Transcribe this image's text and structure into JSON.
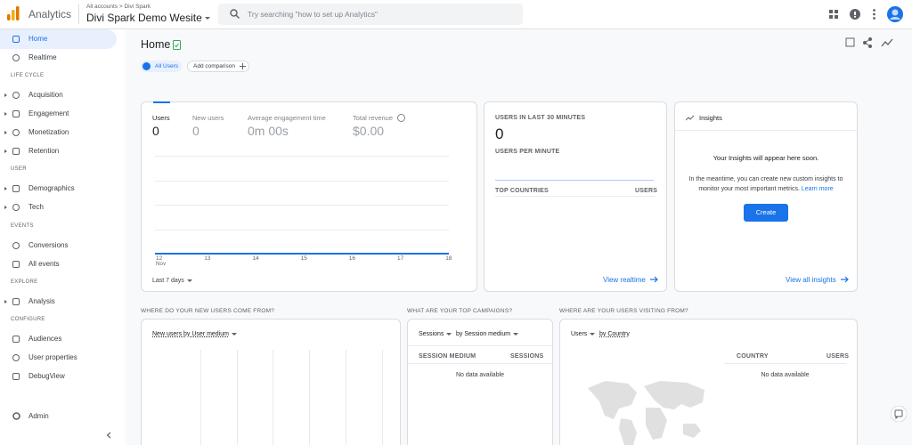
{
  "header": {
    "product": "Analytics",
    "breadcrumb": "All accounts > Divi Spark",
    "property": "Divi Spark Demo Wesite",
    "search_placeholder": "Try searching \"how to set up Analytics\""
  },
  "sidebar": {
    "items": [
      {
        "label": "Home"
      },
      {
        "label": "Realtime"
      },
      {
        "heading": "LIFE CYCLE"
      },
      {
        "label": "Acquisition"
      },
      {
        "label": "Engagement"
      },
      {
        "label": "Monetization"
      },
      {
        "label": "Retention"
      },
      {
        "heading": "USER"
      },
      {
        "label": "Demographics"
      },
      {
        "label": "Tech"
      },
      {
        "heading": "EVENTS"
      },
      {
        "label": "Conversions"
      },
      {
        "label": "All events"
      },
      {
        "heading": "EXPLORE"
      },
      {
        "label": "Analysis"
      },
      {
        "heading": "CONFIGURE"
      },
      {
        "label": "Audiences"
      },
      {
        "label": "User properties"
      },
      {
        "label": "DebugView"
      }
    ],
    "admin": "Admin"
  },
  "page": {
    "title": "Home",
    "segment": "All Users",
    "add_comparison": "Add comparison"
  },
  "overview": {
    "metrics": [
      {
        "label": "Users",
        "value": 0
      },
      {
        "label": "New users",
        "value": 0
      },
      {
        "label": "Average engagement time",
        "value": "0m 00s"
      },
      {
        "label": "Total revenue",
        "value": "$0.00"
      }
    ],
    "x_labels": [
      "12",
      "13",
      "14",
      "15",
      "16",
      "17",
      "18"
    ],
    "month": "Nov",
    "range": "Last 7 days"
  },
  "realtime": {
    "title": "USERS IN LAST 30 MINUTES",
    "value": 0,
    "per_minute": "USERS PER MINUTE",
    "col1": "TOP COUNTRIES",
    "col2": "USERS",
    "link": "View realtime"
  },
  "insights": {
    "title": "Insights",
    "headline": "Your Insights will appear here soon.",
    "body": "In the meantime, you can create new custom insights to monitor your most important metrics.",
    "learn_more": "Learn more",
    "button": "Create",
    "link": "View all insights"
  },
  "cards": [
    {
      "heading": "WHERE DO YOUR NEW USERS COME FROM?",
      "selector": "New users by User medium"
    },
    {
      "heading": "WHAT ARE YOUR TOP CAMPAIGNS?",
      "selector1": "Sessions",
      "selector2": "by Session medium",
      "col1": "SESSION MEDIUM",
      "col2": "SESSIONS",
      "empty": "No data available"
    },
    {
      "heading": "WHERE ARE YOUR USERS VISITING FROM?",
      "selector1": "Users",
      "selector2": "by Country",
      "col1": "COUNTRY",
      "col2": "USERS",
      "empty": "No data available"
    }
  ]
}
